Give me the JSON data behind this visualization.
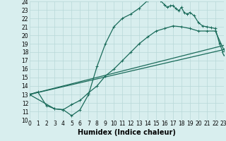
{
  "xlabel": "Humidex (Indice chaleur)",
  "bg_color": "#d8eeee",
  "grid_color": "#b8d8d8",
  "line_color": "#1a6b5a",
  "xlim": [
    0,
    23
  ],
  "ylim": [
    10,
    24
  ],
  "xticks": [
    0,
    1,
    2,
    3,
    4,
    5,
    6,
    7,
    8,
    9,
    10,
    11,
    12,
    13,
    14,
    15,
    16,
    17,
    18,
    19,
    20,
    21,
    22,
    23
  ],
  "yticks": [
    10,
    11,
    12,
    13,
    14,
    15,
    16,
    17,
    18,
    19,
    20,
    21,
    22,
    23,
    24
  ],
  "curve1_x": [
    0,
    1,
    2,
    3,
    4,
    5,
    6,
    7,
    8,
    9,
    10,
    11,
    12,
    13,
    14,
    15,
    15.5,
    16,
    16.3,
    16.7,
    17,
    17.3,
    17.7,
    18,
    18.3,
    18.7,
    19,
    19.5,
    20,
    20.5,
    21,
    21.5,
    22,
    22.5,
    23
  ],
  "curve1_y": [
    13.0,
    13.3,
    11.7,
    11.3,
    11.2,
    10.5,
    11.2,
    13.0,
    16.3,
    19.0,
    21.0,
    22.0,
    22.5,
    23.2,
    24.1,
    24.3,
    24.1,
    23.6,
    23.3,
    23.5,
    23.5,
    23.2,
    22.9,
    23.3,
    22.7,
    22.5,
    22.7,
    22.3,
    21.5,
    21.1,
    21.0,
    20.9,
    20.8,
    19.0,
    17.8
  ],
  "curve2_x": [
    0,
    3,
    4,
    5,
    6,
    7,
    8,
    9,
    10,
    11,
    12,
    13,
    14,
    15,
    16,
    17,
    18,
    19,
    20,
    21,
    22,
    23
  ],
  "curve2_y": [
    13.0,
    11.3,
    11.2,
    11.8,
    12.3,
    13.2,
    14.0,
    15.2,
    16.0,
    17.0,
    18.0,
    19.0,
    19.8,
    20.5,
    20.8,
    21.1,
    21.0,
    20.8,
    20.5,
    20.5,
    20.5,
    18.3
  ],
  "line1_x": [
    0,
    23
  ],
  "line1_y": [
    13.0,
    18.8
  ],
  "line2_x": [
    0,
    23
  ],
  "line2_y": [
    13.0,
    18.3
  ],
  "end_triangle_x": 23,
  "end_triangle_y": 17.8,
  "tick_fontsize": 5.5,
  "axis_fontsize": 7,
  "linewidth": 0.9,
  "markersize": 3.0
}
